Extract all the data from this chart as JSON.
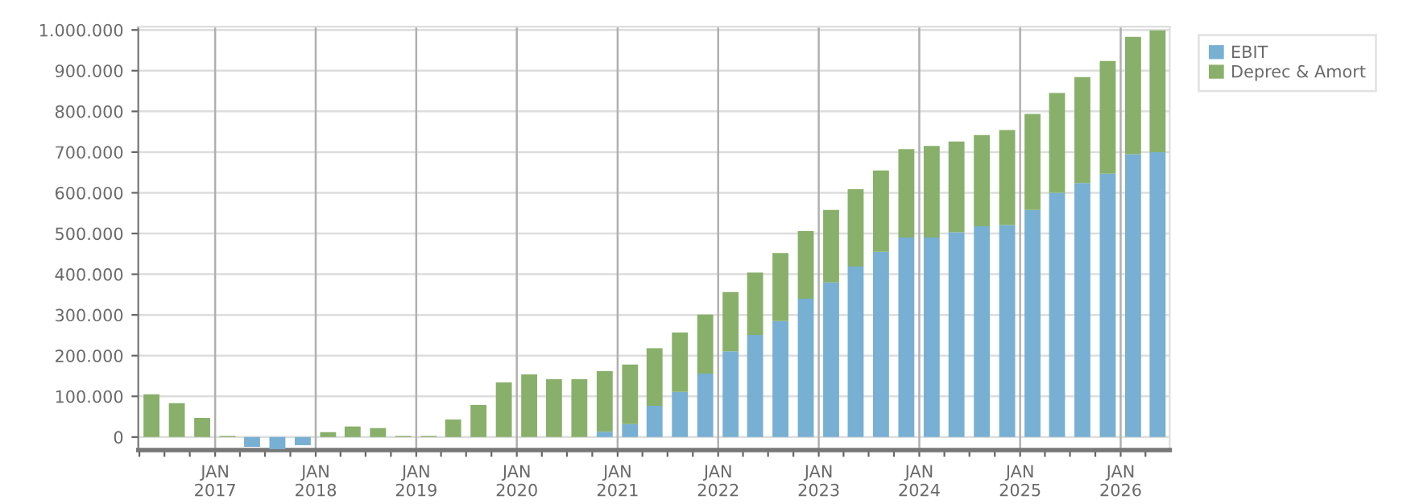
{
  "chart_data": {
    "type": "bar",
    "stacked": true,
    "x": [
      "2016-05-15",
      "2016-08-15",
      "2016-11-15",
      "2017-02-15",
      "2017-05-15",
      "2017-08-15",
      "2017-11-15",
      "2018-02-15",
      "2018-05-15",
      "2018-08-15",
      "2018-11-15",
      "2019-02-15",
      "2019-05-15",
      "2019-08-15",
      "2019-11-15",
      "2020-02-15",
      "2020-05-15",
      "2020-08-15",
      "2020-11-15",
      "2021-02-15",
      "2021-05-15",
      "2021-08-15",
      "2021-11-15",
      "2022-02-15",
      "2022-05-15",
      "2022-08-15",
      "2022-11-15",
      "2023-02-15",
      "2023-05-15",
      "2023-08-15",
      "2023-11-15",
      "2024-02-15",
      "2024-05-15",
      "2024-08-15",
      "2024-11-15",
      "2025-02-15",
      "2025-05-15",
      "2025-08-15",
      "2025-11-15",
      "2026-02-15",
      "2026-05-15"
    ],
    "series": [
      {
        "name": "EBIT",
        "color": "#77b0d2",
        "values": [
          0,
          0,
          0,
          0,
          -24000,
          -30000,
          -20000,
          0,
          0,
          0,
          0,
          0,
          0,
          0,
          0,
          0,
          0,
          0,
          13000,
          32000,
          77000,
          111000,
          156000,
          211000,
          251000,
          285000,
          340000,
          380000,
          419000,
          455000,
          490000,
          490000,
          503000,
          518000,
          521000,
          558000,
          600000,
          624000,
          647000,
          695000,
          700000
        ]
      },
      {
        "name": "Deprec & Amort",
        "color": "#88b06a",
        "values": [
          105000,
          83000,
          47000,
          2500,
          0,
          0,
          0,
          12000,
          26000,
          22000,
          2500,
          2500,
          43000,
          79000,
          134000,
          154000,
          142000,
          142000,
          149000,
          146000,
          141000,
          146000,
          145000,
          145000,
          153000,
          167000,
          166000,
          178000,
          190000,
          200000,
          217000,
          225000,
          223000,
          224000,
          233000,
          236000,
          245000,
          260000,
          277000,
          288000,
          299000
        ]
      }
    ],
    "xlim": [
      "2016-03-28",
      "2026-06-28"
    ],
    "xticks": [
      {
        "value": "2016-04-01",
        "label": null
      },
      {
        "value": "2016-07-01",
        "label": null
      },
      {
        "value": "2016-10-01",
        "label": null
      },
      {
        "value": "2017-01-01",
        "label": "JAN\n2017"
      },
      {
        "value": "2017-04-01",
        "label": null
      },
      {
        "value": "2017-07-01",
        "label": null
      },
      {
        "value": "2017-10-01",
        "label": null
      },
      {
        "value": "2018-01-01",
        "label": "JAN\n2018"
      },
      {
        "value": "2018-04-01",
        "label": null
      },
      {
        "value": "2018-07-01",
        "label": null
      },
      {
        "value": "2018-10-01",
        "label": null
      },
      {
        "value": "2019-01-01",
        "label": "JAN\n2019"
      },
      {
        "value": "2019-04-01",
        "label": null
      },
      {
        "value": "2019-07-01",
        "label": null
      },
      {
        "value": "2019-10-01",
        "label": null
      },
      {
        "value": "2020-01-01",
        "label": "JAN\n2020"
      },
      {
        "value": "2020-04-01",
        "label": null
      },
      {
        "value": "2020-07-01",
        "label": null
      },
      {
        "value": "2020-10-01",
        "label": null
      },
      {
        "value": "2021-01-01",
        "label": "JAN\n2021"
      },
      {
        "value": "2021-04-01",
        "label": null
      },
      {
        "value": "2021-07-01",
        "label": null
      },
      {
        "value": "2021-10-01",
        "label": null
      },
      {
        "value": "2022-01-01",
        "label": "JAN\n2022"
      },
      {
        "value": "2022-04-01",
        "label": null
      },
      {
        "value": "2022-07-01",
        "label": null
      },
      {
        "value": "2022-10-01",
        "label": null
      },
      {
        "value": "2023-01-01",
        "label": "JAN\n2023"
      },
      {
        "value": "2023-04-01",
        "label": null
      },
      {
        "value": "2023-07-01",
        "label": null
      },
      {
        "value": "2023-10-01",
        "label": null
      },
      {
        "value": "2024-01-01",
        "label": "JAN\n2024"
      },
      {
        "value": "2024-04-01",
        "label": null
      },
      {
        "value": "2024-07-01",
        "label": null
      },
      {
        "value": "2024-10-01",
        "label": null
      },
      {
        "value": "2025-01-01",
        "label": "JAN\n2025"
      },
      {
        "value": "2025-04-01",
        "label": null
      },
      {
        "value": "2025-07-01",
        "label": null
      },
      {
        "value": "2025-10-01",
        "label": null
      },
      {
        "value": "2026-01-01",
        "label": "JAN\n2026"
      },
      {
        "value": "2026-04-01",
        "label": null
      }
    ],
    "ylim": [
      -32000,
      1008000
    ],
    "yticks": [
      {
        "value": 0,
        "label": "0"
      },
      {
        "value": 100000,
        "label": "100.000"
      },
      {
        "value": 200000,
        "label": "200.000"
      },
      {
        "value": 300000,
        "label": "300.000"
      },
      {
        "value": 400000,
        "label": "400.000"
      },
      {
        "value": 500000,
        "label": "500.000"
      },
      {
        "value": 600000,
        "label": "600.000"
      },
      {
        "value": 700000,
        "label": "700.000"
      },
      {
        "value": 800000,
        "label": "800.000"
      },
      {
        "value": 900000,
        "label": "900.000"
      },
      {
        "value": 1000000,
        "label": "1.000.000"
      }
    ],
    "grid": true,
    "legend": "top right"
  }
}
